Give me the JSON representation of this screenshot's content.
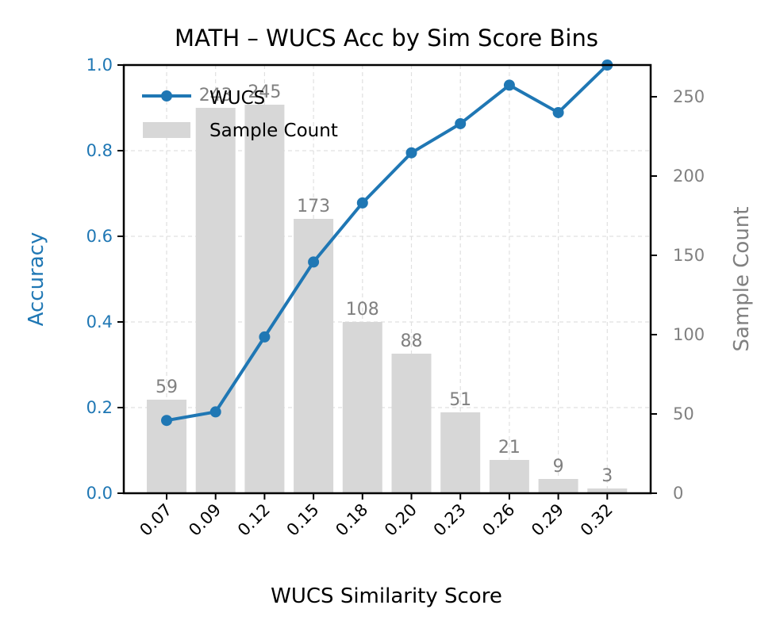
{
  "chart_data": {
    "type": "bar",
    "title": "MATH – WUCS Acc by Sim Score Bins",
    "xlabel": "WUCS Similarity Score",
    "ylabel_left": "Accuracy",
    "ylabel_right": "Sample Count",
    "categories": [
      "0.07",
      "0.09",
      "0.12",
      "0.15",
      "0.18",
      "0.20",
      "0.23",
      "0.26",
      "0.29",
      "0.32"
    ],
    "series": [
      {
        "name": "WUCS",
        "kind": "line",
        "axis": "left",
        "values": [
          0.17,
          0.19,
          0.365,
          0.54,
          0.678,
          0.795,
          0.863,
          0.953,
          0.889,
          1.0
        ],
        "color": "#1f77b4"
      },
      {
        "name": "Sample Count",
        "kind": "bar",
        "axis": "right",
        "values": [
          59,
          243,
          245,
          173,
          108,
          88,
          51,
          21,
          9,
          3
        ],
        "color": "#d7d7d7"
      }
    ],
    "bar_labels": [
      "59",
      "243",
      "245",
      "173",
      "108",
      "88",
      "51",
      "21",
      "9",
      "3"
    ],
    "ylim_left": [
      0,
      1.0
    ],
    "ylim_right": [
      0,
      270
    ],
    "yticks_left": [
      "0.0",
      "0.2",
      "0.4",
      "0.6",
      "0.8",
      "1.0"
    ],
    "yticks_right": [
      "0",
      "50",
      "100",
      "150",
      "200",
      "250"
    ],
    "grid": true,
    "legend_position": "top-left",
    "colors": {
      "left_axis": "#1f77b4",
      "right_axis": "#808080",
      "bar_label": "#808080"
    }
  }
}
